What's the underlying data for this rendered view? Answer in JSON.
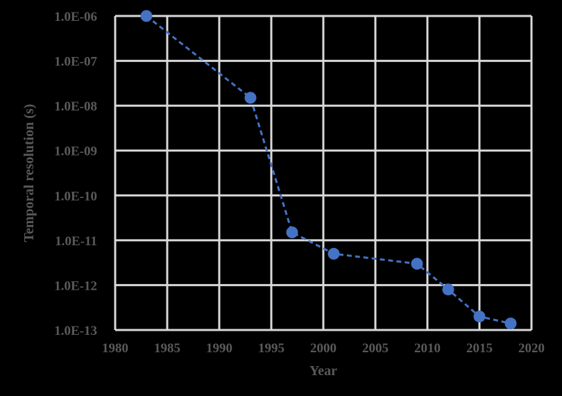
{
  "chart_data": {
    "type": "scatter",
    "title": "",
    "xlabel": "Year",
    "ylabel": "Temporal resolution (s)",
    "xlim": [
      1980,
      2020
    ],
    "ylim": [
      1e-13,
      1e-06
    ],
    "yscale": "log",
    "grid": true,
    "legend": null,
    "x_ticks": [
      "1980",
      "1985",
      "1990",
      "1995",
      "2000",
      "2005",
      "2010",
      "2015",
      "2020"
    ],
    "y_ticks": [
      "1.0E-06",
      "1.0E-07",
      "1.0E-08",
      "1.0E-09",
      "1.0E-10",
      "1.0E-11",
      "1.0E-12",
      "1.0E-13"
    ],
    "series": [
      {
        "name": "Temporal resolution",
        "style": "dashed line with circle markers",
        "color": "#4472c4",
        "x": [
          1983,
          1993,
          1997,
          2001,
          2009,
          2012,
          2015,
          2018
        ],
        "y": [
          1e-06,
          1.5e-08,
          1.5e-11,
          5e-12,
          3e-12,
          8e-13,
          2e-13,
          1.4e-13
        ]
      }
    ]
  },
  "colors": {
    "background": "#000000",
    "grid": "#d9d9d9",
    "text": "#595959",
    "series": "#4472c4"
  }
}
